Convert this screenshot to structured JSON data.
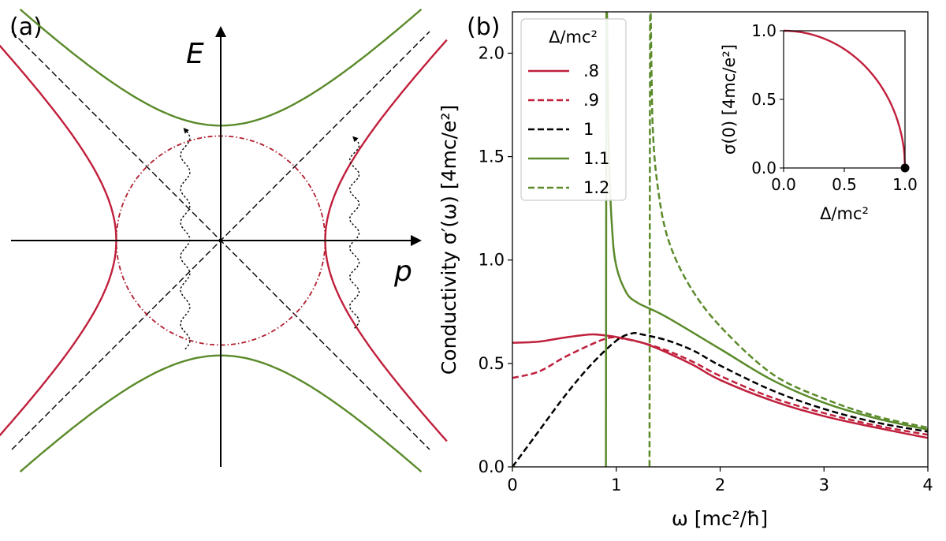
{
  "panel_a": {
    "label": "(a)",
    "x_axis_label": "p",
    "y_axis_label": "E"
  },
  "panel_b": {
    "label": "(b)",
    "xlabel": "ω [mc²/ħ]",
    "ylabel": "Conductivity σ′(ω) [4mc/e²]",
    "legend_title": "Δ/mc²",
    "inset": {
      "xlabel": "Δ/mc²",
      "ylabel": "σ(0) [4mc/e²]"
    }
  },
  "chart_data": [
    {
      "type": "line",
      "panel": "(a)",
      "title": "",
      "xlabel": "p",
      "ylabel": "E",
      "series": [
        {
          "name": "",
          "role": "hyperbola E = ±sqrt(p² + 0.55²)",
          "color": "#5a8a2a",
          "style": "solid"
        },
        {
          "name": "",
          "role": "hyperbola p = ±sqrt(E² + 0.5²)",
          "color": "#c0203c",
          "style": "solid"
        },
        {
          "name": "",
          "role": "asymptotes E = ±p",
          "color": "#000000",
          "style": "dashed"
        },
        {
          "name": "",
          "role": "circle of radius 0.5",
          "color": "#b01e2e",
          "style": "dash-dot"
        },
        {
          "name": "",
          "role": "wavy transition arrows",
          "color": "#000000",
          "style": "dotted"
        }
      ]
    },
    {
      "type": "line",
      "panel": "(b)",
      "xlabel": "ω [mc²/ħ]",
      "ylabel": "Conductivity σ′(ω) [4mc/e²]",
      "xlim": [
        0,
        4
      ],
      "ylim": [
        0,
        2.2
      ],
      "xticks": [
        "0",
        "1",
        "2",
        "3",
        "4"
      ],
      "yticks": [
        "0.0",
        "0.5",
        "1.0",
        "1.5",
        "2.0"
      ],
      "legend_title": "Δ/mc²",
      "legend_position": "top-left",
      "series": [
        {
          "name": ".8",
          "color": "#c0203c",
          "style": "solid",
          "x": [
            0,
            0.25,
            0.5,
            0.75,
            0.9,
            1.0,
            1.25,
            1.5,
            1.75,
            2.0,
            2.5,
            3.0,
            3.5,
            4.0
          ],
          "y": [
            0.6,
            0.605,
            0.625,
            0.64,
            0.635,
            0.628,
            0.6,
            0.55,
            0.49,
            0.42,
            0.32,
            0.245,
            0.19,
            0.14
          ]
        },
        {
          "name": ".9",
          "color": "#c0203c",
          "style": "dashed",
          "x": [
            0,
            0.25,
            0.5,
            0.75,
            0.9,
            1.0,
            1.25,
            1.5,
            1.75,
            2.0,
            2.5,
            3.0,
            3.5,
            4.0
          ],
          "y": [
            0.43,
            0.46,
            0.53,
            0.59,
            0.62,
            0.625,
            0.6,
            0.56,
            0.505,
            0.44,
            0.335,
            0.26,
            0.2,
            0.155
          ]
        },
        {
          "name": "1",
          "color": "#000000",
          "style": "dashed",
          "x": [
            0,
            0.25,
            0.5,
            0.75,
            1.0,
            1.15,
            1.25,
            1.5,
            1.75,
            2.0,
            2.5,
            3.0,
            3.5,
            4.0
          ],
          "y": [
            0.0,
            0.17,
            0.34,
            0.49,
            0.61,
            0.645,
            0.64,
            0.61,
            0.56,
            0.49,
            0.37,
            0.28,
            0.215,
            0.17
          ]
        },
        {
          "name": "1.1",
          "color": "#5a8a2a",
          "style": "solid",
          "x": [
            0,
            0.9,
            0.905,
            0.93,
            0.96,
            1.0,
            1.1,
            1.2,
            1.3,
            1.5,
            2.0,
            2.5,
            3.0,
            3.5,
            4.0
          ],
          "y": [
            0.0,
            0.0,
            2.2,
            1.5,
            1.15,
            0.97,
            0.84,
            0.795,
            0.77,
            0.72,
            0.57,
            0.42,
            0.31,
            0.235,
            0.18
          ]
        },
        {
          "name": "1.2",
          "color": "#5a8a2a",
          "style": "dashed",
          "x": [
            0,
            1.32,
            1.325,
            1.35,
            1.4,
            1.5,
            1.7,
            2.0,
            2.5,
            3.0,
            3.5,
            4.0
          ],
          "y": [
            0.0,
            0.0,
            2.2,
            1.65,
            1.35,
            1.1,
            0.88,
            0.68,
            0.45,
            0.33,
            0.245,
            0.19
          ]
        }
      ]
    },
    {
      "type": "line",
      "panel": "(b) inset",
      "xlabel": "Δ/mc²",
      "ylabel": "σ(0) [4mc/e²]",
      "xlim": [
        0,
        1.0
      ],
      "ylim": [
        0,
        1.0
      ],
      "xticks": [
        "0.0",
        "0.5",
        "1.0"
      ],
      "yticks": [
        "0.0",
        "0.5",
        "1.0"
      ],
      "series": [
        {
          "name": "",
          "color": "#c0203c",
          "style": "solid",
          "x": [
            0,
            0.1,
            0.2,
            0.3,
            0.4,
            0.5,
            0.6,
            0.7,
            0.8,
            0.9,
            0.95,
            0.98,
            1.0
          ],
          "y": [
            1.0,
            0.995,
            0.98,
            0.954,
            0.917,
            0.866,
            0.8,
            0.714,
            0.6,
            0.436,
            0.312,
            0.199,
            0.0
          ]
        },
        {
          "name": "",
          "color": "#000000",
          "style": "marker",
          "x": [
            1.0
          ],
          "y": [
            0.0
          ]
        }
      ]
    }
  ]
}
